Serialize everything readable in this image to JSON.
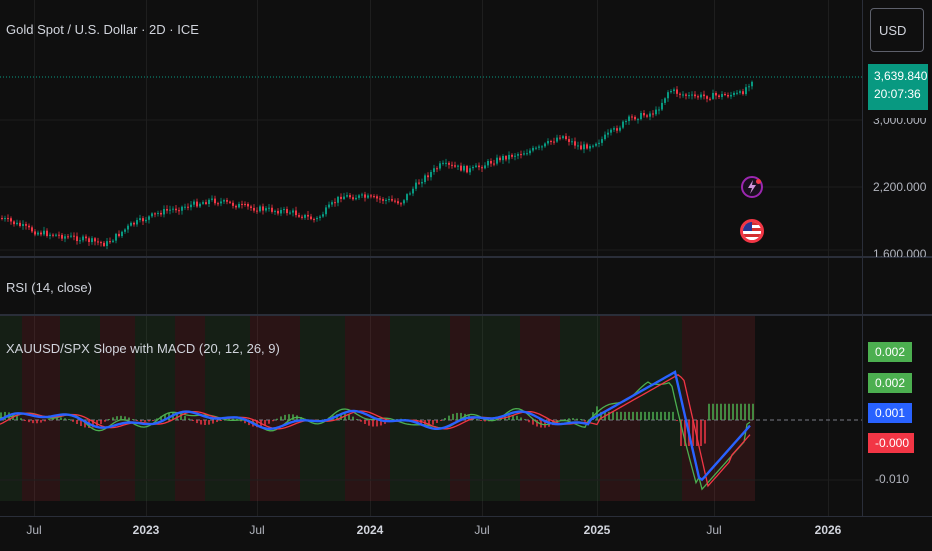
{
  "symbol": {
    "title": "Gold Spot / U.S. Dollar · 2D · ICE"
  },
  "currency_button": "USD",
  "last_price": {
    "value": "3,639.840",
    "countdown": "20:07:36",
    "color": "#089981"
  },
  "price_axis": [
    "3,000.000",
    "2,200.000",
    "1,600.000"
  ],
  "rsi": {
    "title": "RSI (14, close)"
  },
  "macd": {
    "title": "XAUUSD/SPX Slope with MACD (20, 12, 26, 9)",
    "tags": [
      {
        "value": "0.002",
        "color": "#4caf50"
      },
      {
        "value": "0.002",
        "color": "#4caf50"
      },
      {
        "value": "0.001",
        "color": "#2962ff"
      },
      {
        "value": "-0.000",
        "color": "#f23645"
      }
    ],
    "axis_label": "-0.010"
  },
  "time_axis": [
    {
      "label": "Jul",
      "bold": false
    },
    {
      "label": "2023",
      "bold": true
    },
    {
      "label": "Jul",
      "bold": false
    },
    {
      "label": "2024",
      "bold": true
    },
    {
      "label": "Jul",
      "bold": false
    },
    {
      "label": "2025",
      "bold": true
    },
    {
      "label": "Jul",
      "bold": false
    },
    {
      "label": "2026",
      "bold": true
    }
  ],
  "icons": {
    "alert": "lightning-bolt-icon",
    "flag": "us-flag-icon"
  },
  "colors": {
    "up": "#089981",
    "down": "#f23645",
    "macd": "#2962ff",
    "signal": "#f23645",
    "slope": "#4caf50"
  }
}
